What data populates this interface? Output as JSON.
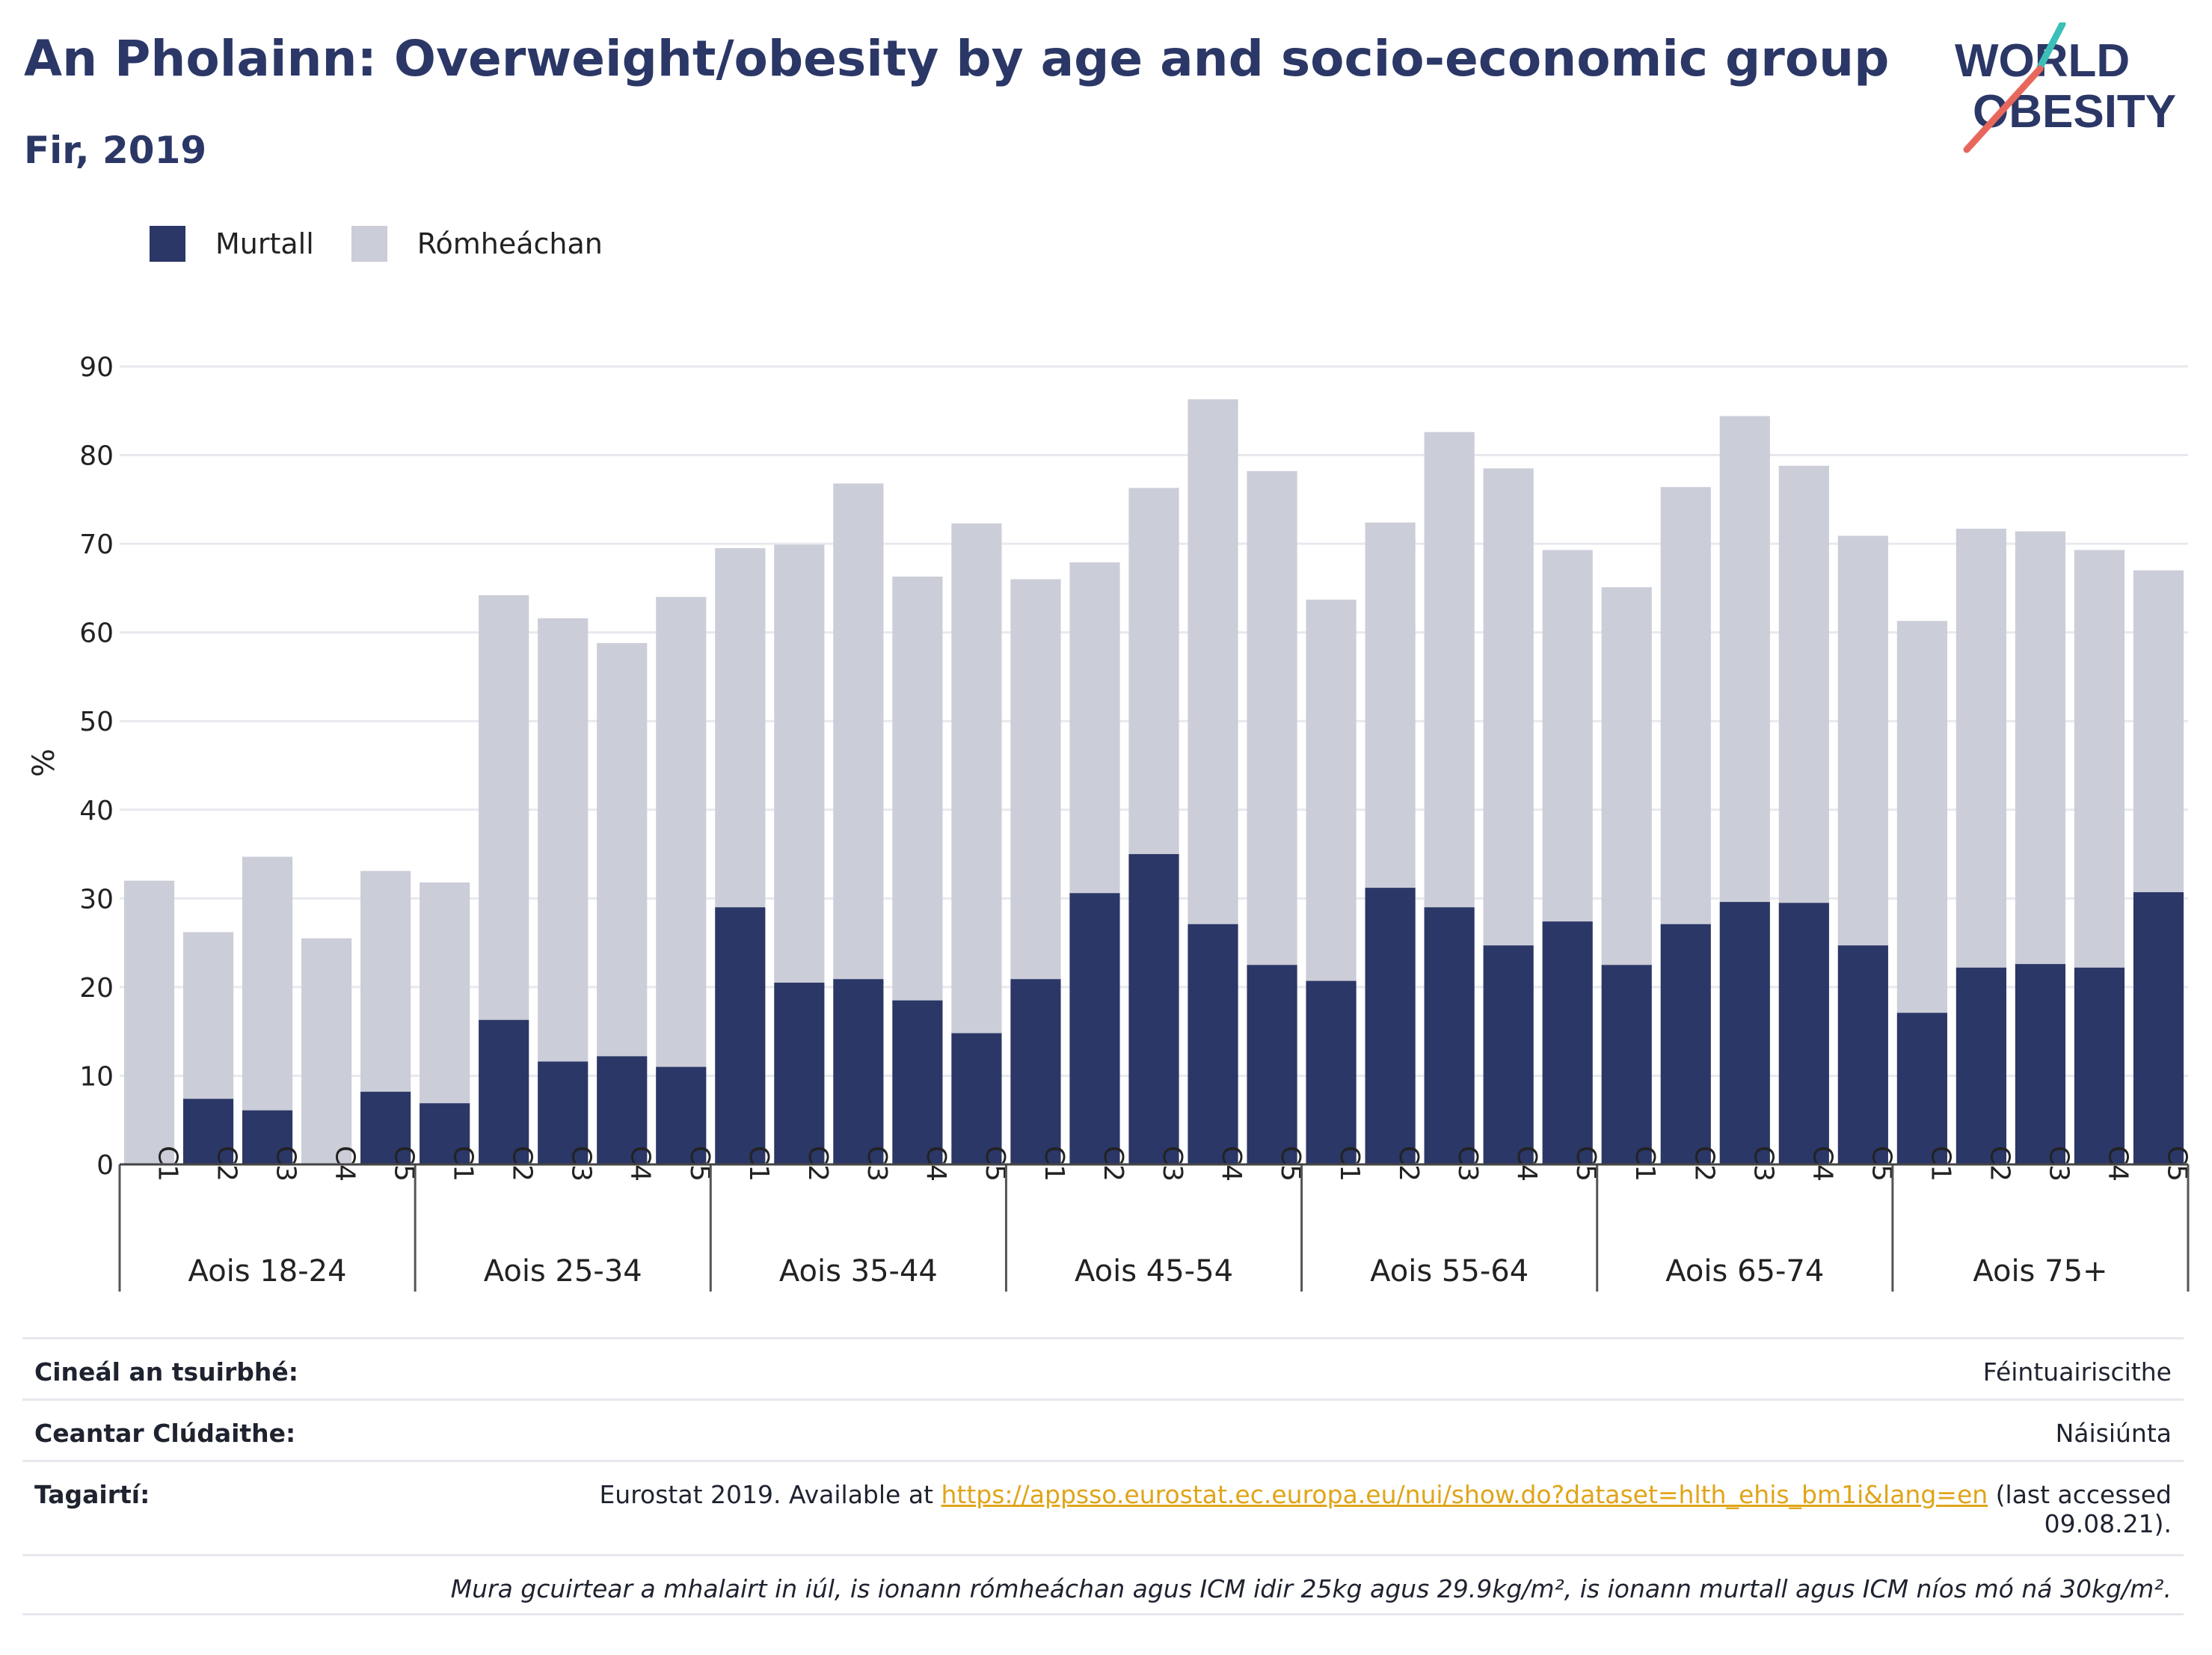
{
  "header": {
    "title": "An Pholainn: Overweight/obesity by age and socio-economic group",
    "subtitle": "Fir, 2019",
    "logo_top": "WORLD",
    "logo_bottom": "OBESITY"
  },
  "colors": {
    "obese": "#2b3766",
    "overweight": "#cbcdd8",
    "accent_teal": "#3bbfb8",
    "accent_red": "#e8675c",
    "link": "#e0a418"
  },
  "chart_data": {
    "type": "bar",
    "stacked": true,
    "ylabel": "%",
    "ylim": [
      0,
      90
    ],
    "yticks": [
      0,
      10,
      20,
      30,
      40,
      50,
      60,
      70,
      80,
      90
    ],
    "legend": {
      "position": "top-left",
      "entries": [
        "Murtall",
        "Rómheáchan"
      ]
    },
    "groups": [
      "Aois 18-24",
      "Aois 25-34",
      "Aois 35-44",
      "Aois 45-54",
      "Aois 55-64",
      "Aois 65-74",
      "Aois 75+"
    ],
    "categories": [
      "C1",
      "C2",
      "C3",
      "C4",
      "C5"
    ],
    "series": [
      {
        "name": "Murtall",
        "values": [
          [
            0,
            7.4,
            6.1,
            0,
            8.2
          ],
          [
            6.9,
            16.3,
            11.6,
            12.2,
            11.0
          ],
          [
            29.0,
            20.5,
            20.9,
            18.5,
            14.8
          ],
          [
            20.9,
            30.6,
            35.0,
            27.1,
            22.5
          ],
          [
            20.7,
            31.2,
            29.0,
            24.7,
            27.4
          ],
          [
            22.5,
            27.1,
            29.6,
            29.5,
            24.7
          ],
          [
            17.1,
            22.2,
            22.6,
            22.2,
            30.7
          ]
        ]
      },
      {
        "name": "Rómheáchan",
        "values": [
          [
            32.0,
            18.8,
            28.6,
            25.5,
            24.9
          ],
          [
            24.9,
            47.9,
            50.0,
            46.6,
            53.0
          ],
          [
            40.5,
            49.4,
            55.9,
            47.8,
            57.5
          ],
          [
            45.1,
            37.3,
            41.3,
            59.2,
            55.7
          ],
          [
            43.0,
            41.2,
            53.6,
            53.8,
            41.9
          ],
          [
            42.6,
            49.3,
            54.8,
            49.3,
            46.2
          ],
          [
            44.2,
            49.5,
            48.8,
            47.1,
            36.3
          ]
        ]
      }
    ]
  },
  "footer": {
    "survey_label": "Cineál an tsuirbhé:",
    "survey_value": "Féintuairiscithe",
    "area_label": "Ceantar Clúdaithe:",
    "area_value": "Náisiúnta",
    "ref_label": "Tagairtí:",
    "ref_prefix": "Eurostat 2019. Available at ",
    "ref_link": "https://appsso.eurostat.ec.europa.eu/nui/show.do?dataset=hlth_ehis_bm1i&lang=en",
    "ref_suffix": " (last accessed",
    "ref_date": "09.08.21).",
    "note": "Mura gcuirtear a mhalairt in iúl, is ionann rómheáchan agus ICM idir 25kg agus 29.9kg/m², is ionann murtall agus ICM níos mó ná 30kg/m²."
  }
}
